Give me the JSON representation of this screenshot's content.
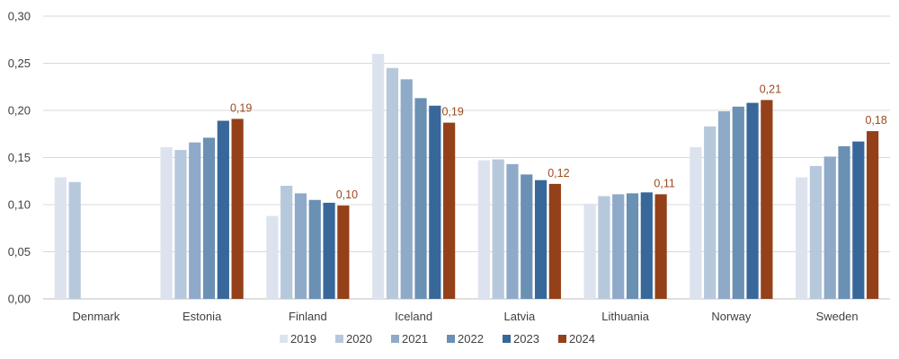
{
  "colors": {
    "2019": "#dde3ee",
    "2020": "#b6c8dc",
    "2021": "#8faac8",
    "2022": "#6a90b4",
    "2023": "#38679a",
    "2024": "#944019",
    "data_label": "#9a4a1e",
    "grid": "#d9d9d9",
    "text": "#404040"
  },
  "chart_data": {
    "type": "bar",
    "title": "",
    "xlabel": "",
    "ylabel": "",
    "ylim": [
      0,
      0.3
    ],
    "yticks": [
      "0,00",
      "0,05",
      "0,10",
      "0,15",
      "0,20",
      "0,25",
      "0,30"
    ],
    "grid": true,
    "legend_position": "bottom",
    "categories": [
      "Denmark",
      "Estonia",
      "Finland",
      "Iceland",
      "Latvia",
      "Lithuania",
      "Norway",
      "Sweden"
    ],
    "series": [
      {
        "name": "2019",
        "values": [
          0.129,
          0.161,
          0.088,
          0.26,
          0.147,
          0.101,
          0.161,
          0.129
        ]
      },
      {
        "name": "2020",
        "values": [
          0.124,
          0.158,
          0.12,
          0.245,
          0.148,
          0.109,
          0.183,
          0.141
        ]
      },
      {
        "name": "2021",
        "values": [
          null,
          0.166,
          0.112,
          0.233,
          0.143,
          0.111,
          0.199,
          0.151
        ]
      },
      {
        "name": "2022",
        "values": [
          null,
          0.171,
          0.105,
          0.213,
          0.132,
          0.112,
          0.204,
          0.162
        ]
      },
      {
        "name": "2023",
        "values": [
          null,
          0.189,
          0.102,
          0.205,
          0.126,
          0.113,
          0.208,
          0.167
        ]
      },
      {
        "name": "2024",
        "values": [
          null,
          0.191,
          0.099,
          0.187,
          0.122,
          0.111,
          0.211,
          0.178
        ]
      }
    ],
    "data_labels": [
      "",
      "0,19",
      "0,10",
      "0,19",
      "0,12",
      "0,11",
      "0,21",
      "0,18"
    ]
  }
}
